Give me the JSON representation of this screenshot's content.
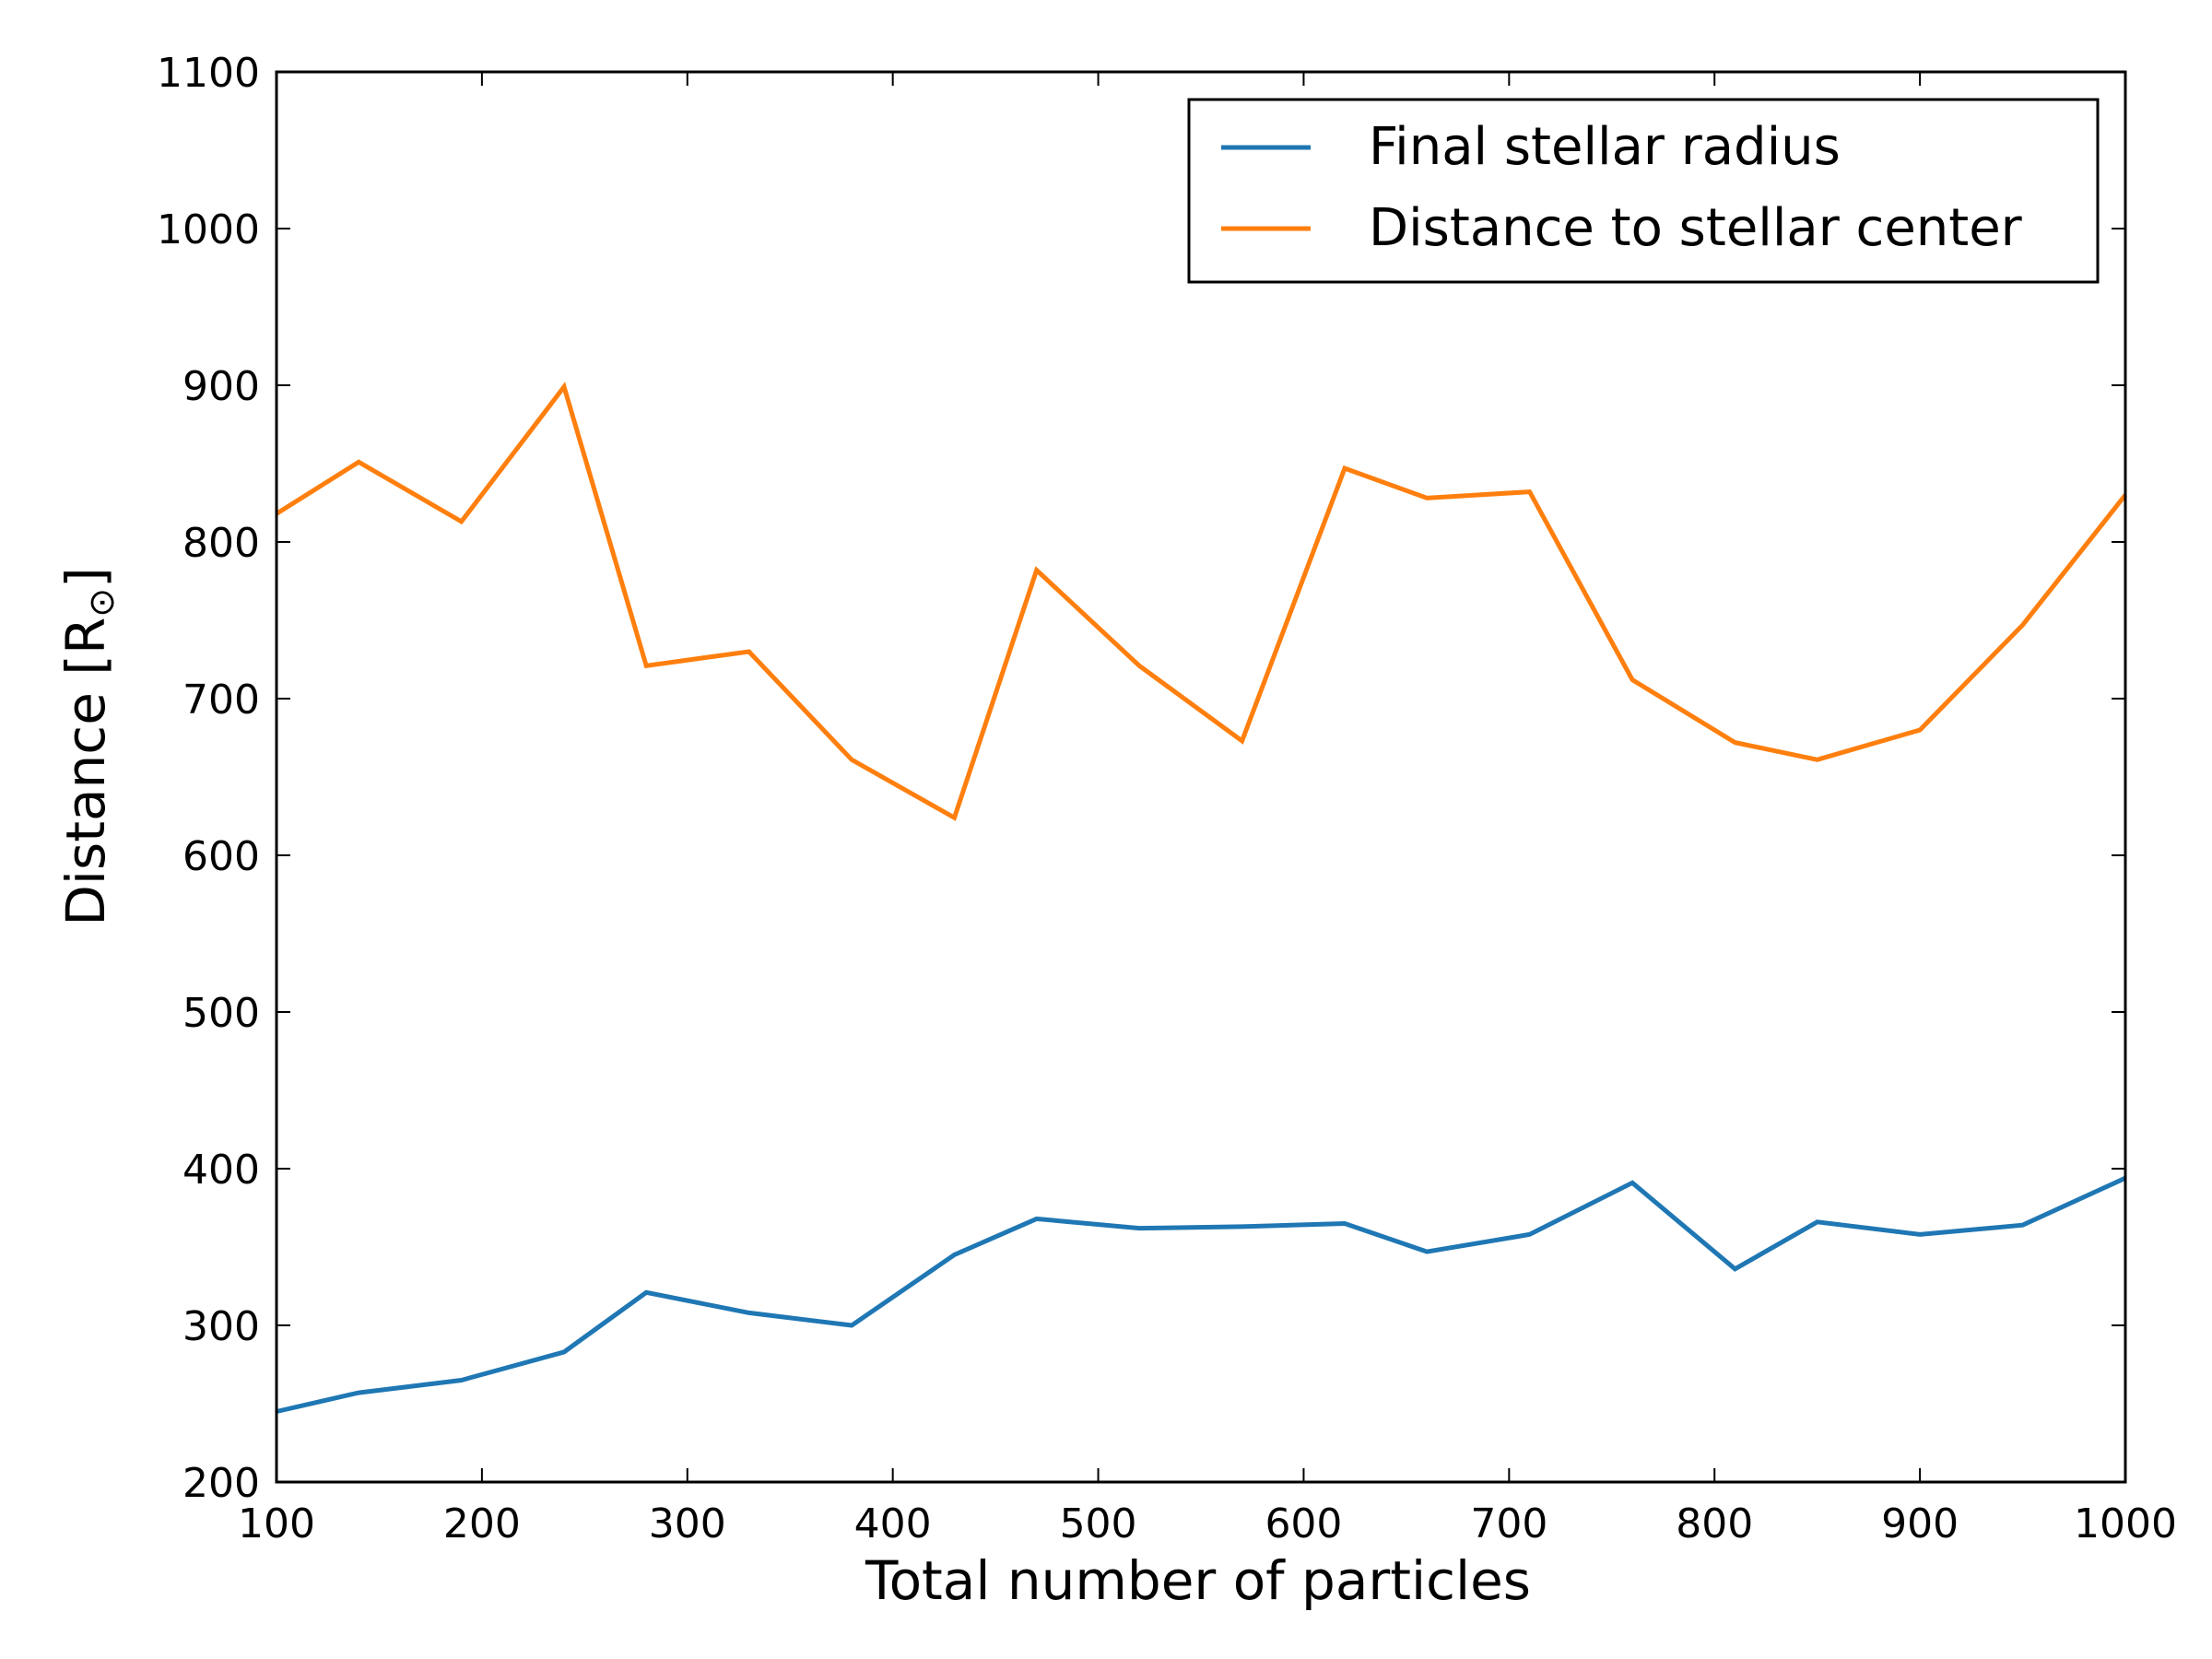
{
  "chart_data": {
    "type": "line",
    "title": "",
    "xlabel": "Total number of particles",
    "ylabel_main": "Distance [R",
    "ylabel_sub": "⊙",
    "ylabel_close": "]",
    "xlim": [
      100,
      1000
    ],
    "ylim": [
      200,
      1100
    ],
    "xticks": [
      100,
      200,
      300,
      400,
      500,
      600,
      700,
      800,
      900,
      1000
    ],
    "yticks": [
      200,
      300,
      400,
      500,
      600,
      700,
      800,
      900,
      1000,
      1100
    ],
    "grid": false,
    "legend_position": "top-right",
    "x": [
      100,
      140,
      190,
      240,
      280,
      330,
      380,
      430,
      470,
      520,
      570,
      620,
      660,
      710,
      760,
      810,
      850,
      900,
      950,
      1000
    ],
    "series": [
      {
        "name": "Final stellar radius",
        "color": "#1f77b4",
        "values": [
          245,
          257,
          265,
          283,
          321,
          308,
          300,
          345,
          368,
          362,
          363,
          365,
          347,
          358,
          391,
          336,
          366,
          358,
          364,
          394
        ]
      },
      {
        "name": "Distance to stellar center",
        "color": "#ff7f0e",
        "values": [
          818,
          851,
          813,
          899,
          721,
          730,
          661,
          624,
          782,
          721,
          673,
          847,
          828,
          832,
          712,
          672,
          661,
          680,
          747,
          830
        ]
      }
    ]
  }
}
